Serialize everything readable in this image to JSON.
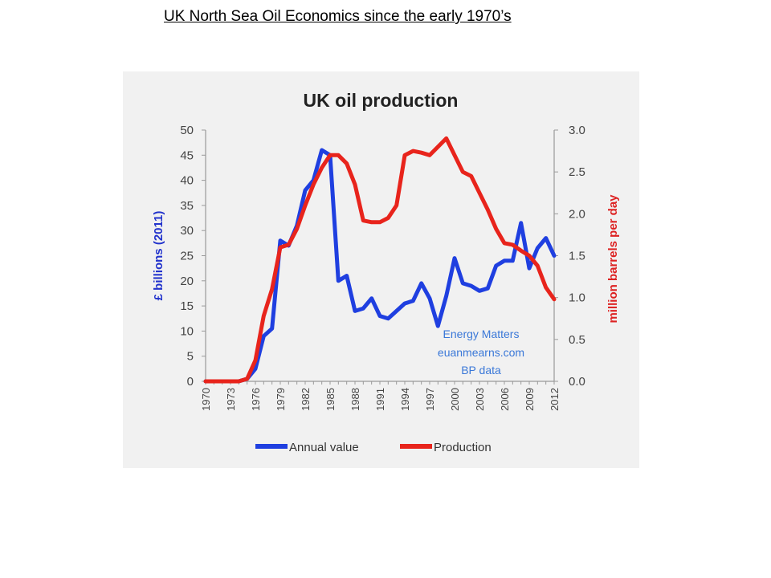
{
  "slide": {
    "title": "UK North Sea Oil Economics since the early 1970’s"
  },
  "chart_data": {
    "type": "line",
    "title": "UK oil production",
    "ylabel_left": "£ billions (2011)",
    "ylabel_right": "million barrels per day",
    "ylim_left": [
      0,
      50
    ],
    "ylim_right": [
      0,
      3.0
    ],
    "yticks_left": [
      "0",
      "5",
      "10",
      "15",
      "20",
      "25",
      "30",
      "35",
      "40",
      "45",
      "50"
    ],
    "yticks_right": [
      "0.0",
      "0.5",
      "1.0",
      "1.5",
      "2.0",
      "2.5",
      "3.0"
    ],
    "xticks": [
      "1970",
      "1973",
      "1976",
      "1979",
      "1982",
      "1985",
      "1988",
      "1991",
      "1994",
      "1997",
      "2000",
      "2003",
      "2006",
      "2009",
      "2012"
    ],
    "xlim": [
      1970,
      2012
    ],
    "annotation": [
      "Energy Matters",
      "euanmearns.com",
      "BP data"
    ],
    "legend_position": "bottom",
    "series": [
      {
        "name": "Annual value",
        "axis": "left",
        "color": "#1f3fe0",
        "x": [
          1970,
          1971,
          1972,
          1973,
          1974,
          1975,
          1976,
          1977,
          1978,
          1979,
          1980,
          1981,
          1982,
          1983,
          1984,
          1985,
          1986,
          1987,
          1988,
          1989,
          1990,
          1991,
          1992,
          1993,
          1994,
          1995,
          1996,
          1997,
          1998,
          1999,
          2000,
          2001,
          2002,
          2003,
          2004,
          2005,
          2006,
          2007,
          2008,
          2009,
          2010,
          2011,
          2012
        ],
        "values": [
          0,
          0,
          0,
          0,
          0,
          0.5,
          2.5,
          9,
          10.5,
          28,
          27,
          31,
          38,
          40,
          46,
          45,
          20,
          21,
          14,
          14.5,
          16.5,
          13,
          12.5,
          14,
          15.5,
          16,
          19.5,
          16.5,
          11,
          17,
          24.5,
          19.5,
          19,
          18,
          18.5,
          23,
          24,
          24,
          31.5,
          22.5,
          26.5,
          28.5,
          25
        ]
      },
      {
        "name": "Production",
        "axis": "right",
        "color": "#e8241c",
        "x": [
          1970,
          1971,
          1972,
          1973,
          1974,
          1975,
          1976,
          1977,
          1978,
          1979,
          1980,
          1981,
          1982,
          1983,
          1984,
          1985,
          1986,
          1987,
          1988,
          1989,
          1990,
          1991,
          1992,
          1993,
          1994,
          1995,
          1996,
          1997,
          1998,
          1999,
          2000,
          2001,
          2002,
          2003,
          2004,
          2005,
          2006,
          2007,
          2008,
          2009,
          2010,
          2011,
          2012
        ],
        "values": [
          0,
          0,
          0,
          0,
          0,
          0.03,
          0.25,
          0.78,
          1.1,
          1.6,
          1.63,
          1.82,
          2.1,
          2.35,
          2.55,
          2.7,
          2.7,
          2.6,
          2.35,
          1.92,
          1.9,
          1.9,
          1.95,
          2.1,
          2.7,
          2.75,
          2.73,
          2.7,
          2.8,
          2.9,
          2.7,
          2.5,
          2.45,
          2.25,
          2.05,
          1.82,
          1.65,
          1.63,
          1.56,
          1.5,
          1.38,
          1.12,
          0.98
        ]
      }
    ]
  }
}
